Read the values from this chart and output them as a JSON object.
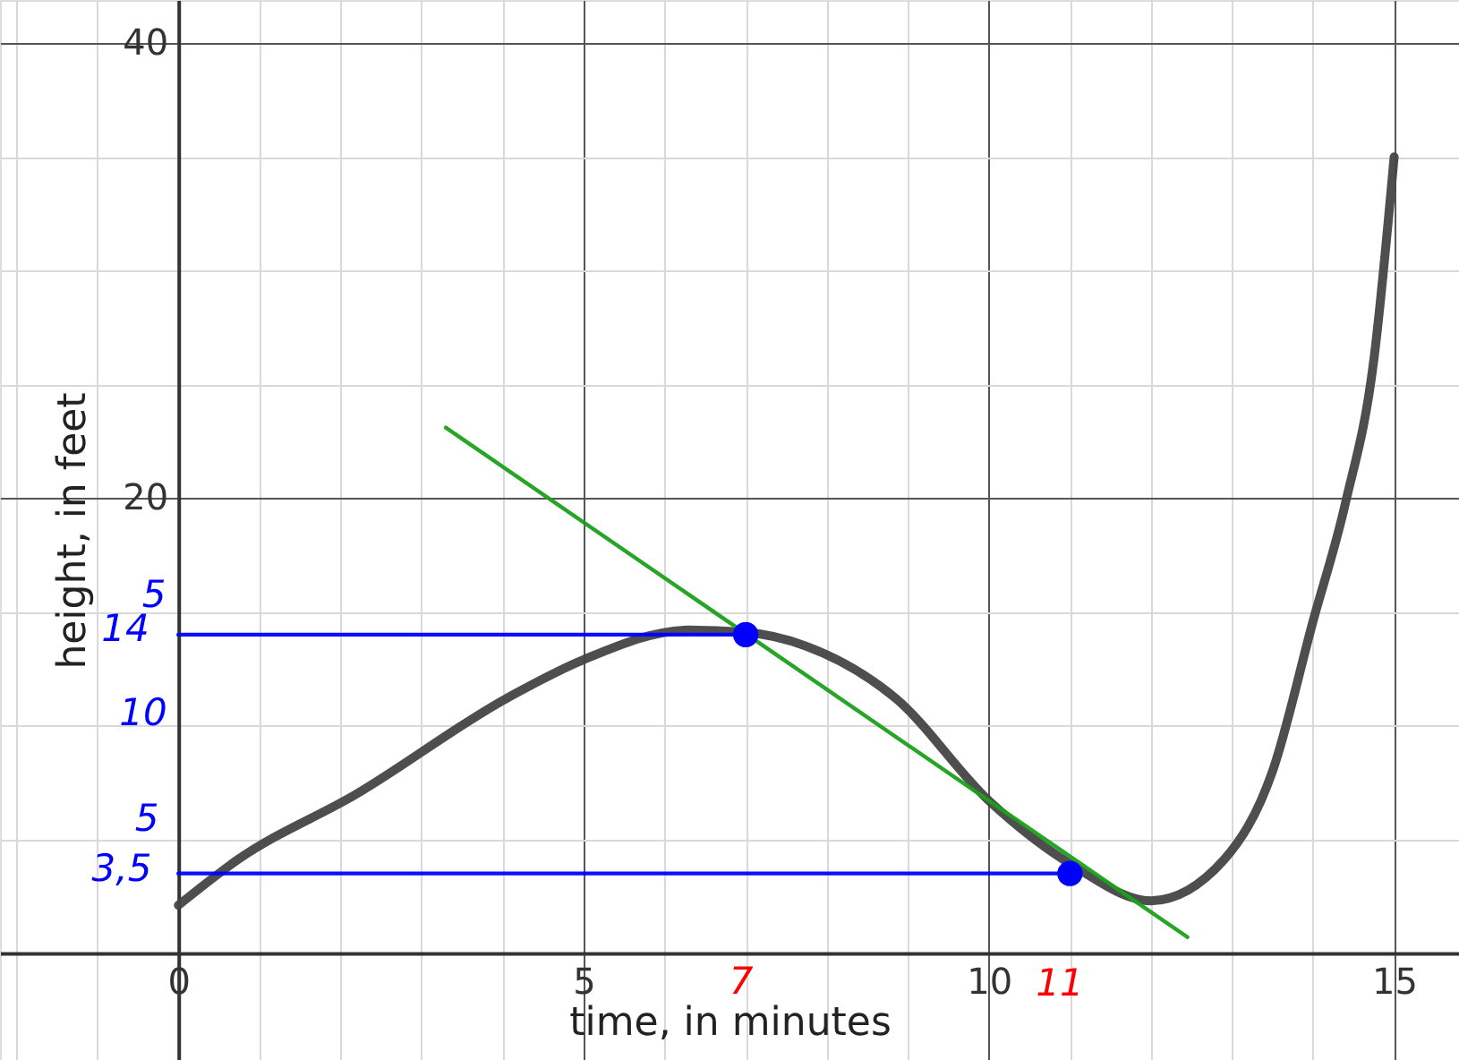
{
  "chart_data": {
    "type": "line",
    "xlabel": "time, in minutes",
    "ylabel": "height, in feet",
    "xlim": [
      -2.2,
      15.8
    ],
    "ylim": [
      -4.7,
      41.9
    ],
    "xticks": [
      {
        "value": -2,
        "label": null
      },
      {
        "value": -1,
        "label": null
      },
      0,
      {
        "value": 1,
        "label": null
      },
      {
        "value": 2,
        "label": null
      },
      {
        "value": 3,
        "label": null
      },
      {
        "value": 4,
        "label": null
      },
      5,
      {
        "value": 6,
        "label": null
      },
      {
        "value": 7,
        "label": null
      },
      {
        "value": 8,
        "label": null
      },
      {
        "value": 9,
        "label": null
      },
      10,
      {
        "value": 11,
        "label": null
      },
      {
        "value": 12,
        "label": null
      },
      {
        "value": 13,
        "label": null
      },
      {
        "value": 14,
        "label": null
      },
      15
    ],
    "yticks": [
      {
        "value": 0,
        "label": null
      },
      {
        "value": 5,
        "label": null
      },
      {
        "value": 10,
        "label": null
      },
      {
        "value": 15,
        "label": null
      },
      20,
      {
        "value": 25,
        "label": null
      },
      {
        "value": 30,
        "label": null
      },
      {
        "value": 35,
        "label": null
      },
      40
    ],
    "grid": true,
    "series": [
      {
        "color": "#444444",
        "marker": "none",
        "x": [
          0,
          0.73,
          2.2,
          4.05,
          5.0,
          6.3,
          7.0,
          7.74,
          8.85,
          10.0,
          11.06,
          12.0,
          12.9,
          13.5,
          14.0,
          14.4,
          14.75,
          15.0
        ],
        "values": [
          2.1,
          4.1,
          7.0,
          11.2,
          12.9,
          14.2,
          14.1,
          13.5,
          11.2,
          6.7,
          3.8,
          2.3,
          4.1,
          8.0,
          14.6,
          19.8,
          26.1,
          35.0
        ]
      },
      {
        "color": "#1aa01a",
        "marker": "none",
        "x": [
          3.3,
          12.45
        ],
        "values": [
          23.1,
          0.7
        ]
      },
      {
        "color": "#0000ff",
        "marker": "none",
        "x": [
          0,
          7
        ],
        "values": [
          14,
          14
        ]
      },
      {
        "color": "#0000ff",
        "marker": "none",
        "x": [
          0,
          11
        ],
        "values": [
          3.5,
          3.5
        ]
      },
      {
        "type": "scatter",
        "color": "#0000ff",
        "marker": "circle",
        "x": [
          7,
          11
        ],
        "values": [
          14,
          3.5
        ]
      }
    ],
    "annotations": [
      "14",
      "5",
      "10",
      "5",
      "3,5",
      "7",
      "11"
    ]
  }
}
